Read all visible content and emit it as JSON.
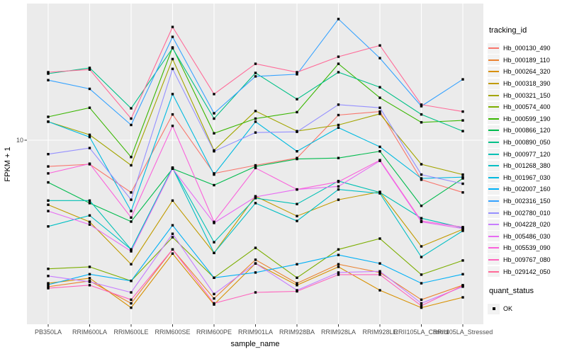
{
  "axes": {
    "y_title": "FPKM + 1",
    "y_tick": "10",
    "x_title": "sample_name"
  },
  "legend_tracking": {
    "title": "tracking_id"
  },
  "legend_quant": {
    "title": "quant_status",
    "items": [
      "OK"
    ]
  },
  "colors": {
    "panel_bg": "#EBEBEB",
    "grid": "#FFFFFF",
    "axis_text": "#4D4D4D",
    "point": "#000000",
    "legend_key_bg": "#F2F2F2"
  },
  "chart_data": {
    "type": "line",
    "title": "",
    "xlabel": "sample_name",
    "ylabel": "FPKM + 1",
    "y_scale": "log10",
    "y_tick_labels": [
      "10"
    ],
    "grid": "on",
    "legend_position": "right",
    "point_shape": "square",
    "quant_status": "OK",
    "categories": [
      "PB350LA",
      "RRIM600LA",
      "RRIM600LE",
      "RRIM600SE",
      "RRIM600PE",
      "RRIM901LA",
      "RRIM928BA",
      "RRIM928LA",
      "RRIM928LE",
      "RRII105LA_Control",
      "RRII105LA_Stressed"
    ],
    "series": [
      {
        "name": "Hb_000130_490",
        "color": "#F8766D",
        "values": [
          7.2,
          7.4,
          5.2,
          13.8,
          6.6,
          7.3,
          8.0,
          13.7,
          14.3,
          6.1,
          5.2
        ]
      },
      {
        "name": "Hb_000189_110",
        "color": "#EA8331",
        "values": [
          1.6,
          1.72,
          1.3,
          2.55,
          1.38,
          2.24,
          1.67,
          2.12,
          1.91,
          1.36,
          1.63
        ]
      },
      {
        "name": "Hb_000264_320",
        "color": "#D89000",
        "values": [
          1.67,
          1.78,
          1.23,
          2.42,
          1.28,
          2.14,
          1.63,
          2.05,
          1.53,
          1.23,
          1.4
        ]
      },
      {
        "name": "Hb_000318_390",
        "color": "#C09B00",
        "values": [
          4.46,
          3.6,
          2.12,
          4.7,
          2.44,
          4.96,
          3.87,
          4.75,
          5.24,
          2.65,
          3.28
        ]
      },
      {
        "name": "Hb_000321_150",
        "color": "#A3A500",
        "values": [
          12.6,
          10.7,
          7.3,
          27.6,
          8.8,
          14.4,
          11.2,
          12.1,
          13.9,
          7.4,
          6.5
        ]
      },
      {
        "name": "Hb_000574_400",
        "color": "#7CAE00",
        "values": [
          2.0,
          2.05,
          1.72,
          2.97,
          1.79,
          2.6,
          1.79,
          2.55,
          2.92,
          1.86,
          2.22
        ]
      },
      {
        "name": "Hb_000599_190",
        "color": "#39B600",
        "values": [
          13.4,
          15.0,
          8.1,
          31.9,
          10.9,
          13.1,
          14.2,
          26.0,
          17.0,
          12.5,
          12.8
        ]
      },
      {
        "name": "Hb_000866_120",
        "color": "#00BB4E",
        "values": [
          5.9,
          4.55,
          3.61,
          7.0,
          5.7,
          7.2,
          7.9,
          8.0,
          8.7,
          4.4,
          6.2
        ]
      },
      {
        "name": "Hb_000890_050",
        "color": "#00C087",
        "values": [
          23.0,
          24.7,
          14.9,
          31.6,
          13.1,
          23.2,
          16.7,
          23.4,
          19.4,
          13.8,
          11.2
        ]
      },
      {
        "name": "Hb_000977_120",
        "color": "#00C0B4",
        "values": [
          4.7,
          4.7,
          2.55,
          7.1,
          2.79,
          4.84,
          4.5,
          6.0,
          5.2,
          3.77,
          3.34
        ]
      },
      {
        "name": "Hb_001268_380",
        "color": "#00BFC4",
        "values": [
          3.4,
          3.9,
          2.55,
          7.06,
          2.44,
          4.55,
          3.64,
          5.4,
          5.14,
          2.32,
          3.22
        ]
      },
      {
        "name": "Hb_001967_030",
        "color": "#00BAE0",
        "values": [
          12.6,
          10.4,
          4.12,
          17.8,
          6.5,
          12.6,
          8.7,
          11.7,
          9.2,
          6.2,
          6.3
        ]
      },
      {
        "name": "Hb_002007_160",
        "color": "#00B0F6",
        "values": [
          1.64,
          1.87,
          1.72,
          3.45,
          1.79,
          1.91,
          2.12,
          2.38,
          2.14,
          1.67,
          1.87
        ]
      },
      {
        "name": "Hb_002316_150",
        "color": "#35A2FF",
        "values": [
          21.2,
          19.0,
          12.1,
          36.4,
          14.0,
          22.2,
          22.8,
          45.5,
          27.9,
          15.3,
          21.4
        ]
      },
      {
        "name": "Hb_002780_010",
        "color": "#9590FF",
        "values": [
          8.4,
          9.06,
          4.75,
          24.4,
          8.7,
          11.0,
          11.1,
          15.6,
          15.0,
          6.5,
          5.8
        ]
      },
      {
        "name": "Hb_004228_020",
        "color": "#C77CFF",
        "values": [
          1.83,
          1.7,
          1.49,
          3.1,
          1.46,
          2.14,
          1.53,
          1.91,
          1.94,
          1.3,
          1.6
        ]
      },
      {
        "name": "Hb_005486_030",
        "color": "#E76BF3",
        "values": [
          4.12,
          3.48,
          2.49,
          7.0,
          3.55,
          4.92,
          5.4,
          5.61,
          7.72,
          3.6,
          3.31
        ]
      },
      {
        "name": "Hb_005539_090",
        "color": "#FA62DB",
        "values": [
          6.6,
          7.45,
          3.8,
          11.96,
          3.6,
          7.06,
          5.4,
          5.94,
          7.79,
          3.64,
          3.37
        ]
      },
      {
        "name": "Hb_009767_080",
        "color": "#FF62BC",
        "values": [
          1.57,
          1.63,
          1.36,
          2.55,
          1.3,
          1.49,
          1.51,
          1.86,
          1.86,
          1.26,
          1.62
        ]
      },
      {
        "name": "Hb_029142_050",
        "color": "#FF6A98",
        "values": [
          23.4,
          24.2,
          13.1,
          41.2,
          17.8,
          26.0,
          23.4,
          28.4,
          32.7,
          15.6,
          14.3
        ]
      }
    ]
  }
}
